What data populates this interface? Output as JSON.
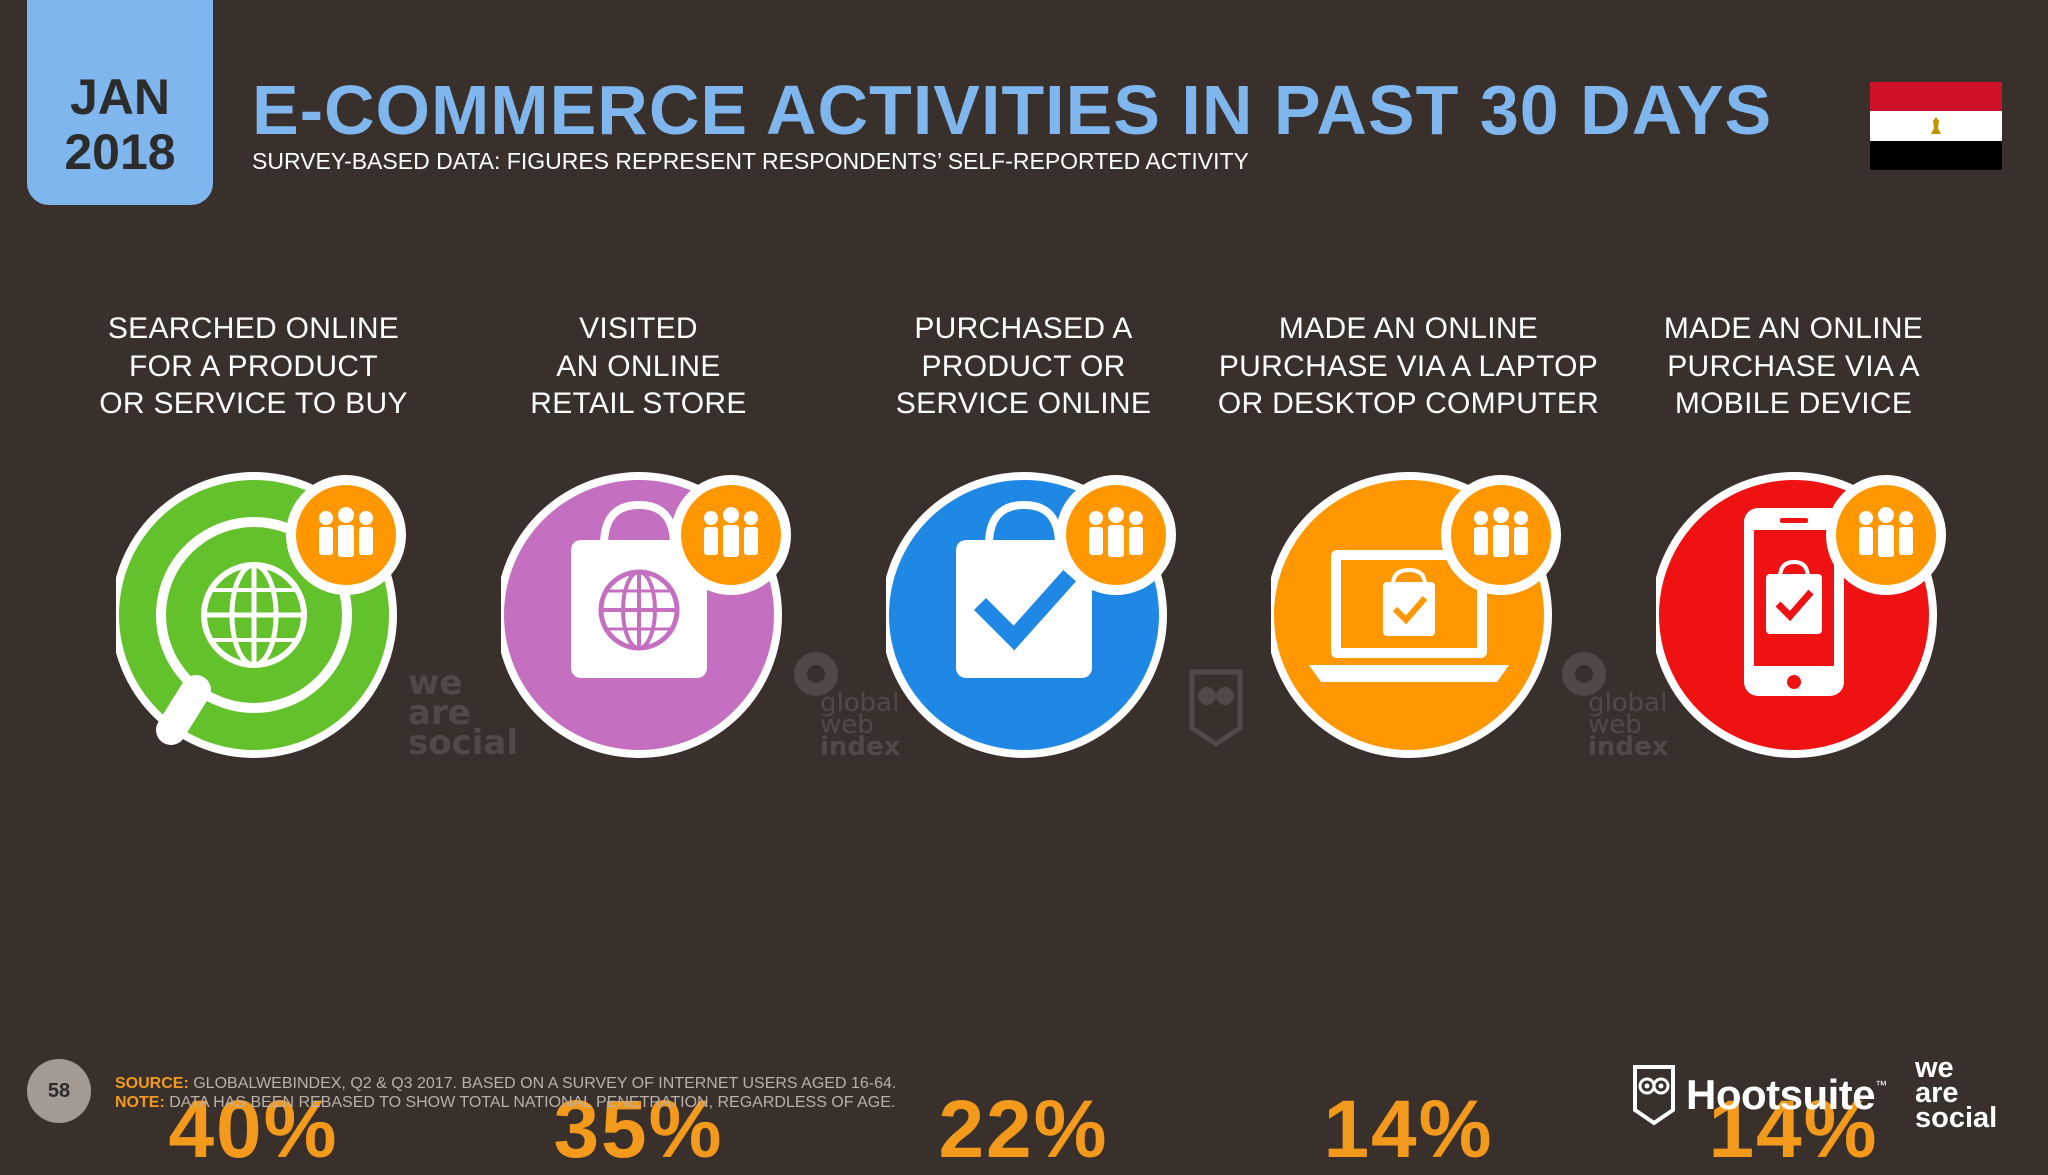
{
  "header": {
    "month": "JAN",
    "year": "2018",
    "title": "E-COMMERCE ACTIVITIES IN PAST 30 DAYS",
    "subtitle": "SURVEY-BASED DATA: FIGURES REPRESENT RESPONDENTS’ SELF-REPORTED ACTIVITY",
    "flag_icon": "egypt-flag-icon"
  },
  "colors": {
    "background": "#39302c",
    "accent_blue": "#7fb6ee",
    "value_orange": "#f39a1d",
    "green": "#63c12c",
    "purple": "#c56fc0",
    "blue": "#1f88e5",
    "orange": "#ff9800",
    "red": "#ef1212"
  },
  "activities": [
    {
      "label_lines": [
        "SEARCHED ONLINE",
        "FOR A PRODUCT",
        "OR SERVICE TO BUY"
      ],
      "value": "40%",
      "icon": "globe-search-icon",
      "color": "#63c12c"
    },
    {
      "label_lines": [
        "VISITED",
        "AN ONLINE",
        "RETAIL STORE"
      ],
      "value": "35%",
      "icon": "shopping-bag-globe-icon",
      "color": "#c56fc0"
    },
    {
      "label_lines": [
        "PURCHASED A",
        "PRODUCT OR",
        "SERVICE ONLINE"
      ],
      "value": "22%",
      "icon": "shopping-bag-check-icon",
      "color": "#1f88e5"
    },
    {
      "label_lines": [
        "MADE AN ONLINE",
        "PURCHASE VIA A LAPTOP",
        "OR DESKTOP COMPUTER"
      ],
      "value": "14%",
      "icon": "laptop-bag-icon",
      "color": "#ff9800"
    },
    {
      "label_lines": [
        "MADE AN ONLINE",
        "PURCHASE VIA A",
        "MOBILE DEVICE"
      ],
      "value": "14%",
      "icon": "mobile-bag-icon",
      "color": "#ef1212"
    }
  ],
  "watermarks": {
    "wearesocial": [
      "we",
      "are",
      "social"
    ],
    "gwi": [
      "global",
      "web",
      "index"
    ]
  },
  "footer": {
    "page_number": "58",
    "source_label": "SOURCE:",
    "source_text": "GLOBALWEBINDEX, Q2 & Q3 2017. BASED ON A SURVEY OF INTERNET USERS AGED 16-64.",
    "note_label": "NOTE:",
    "note_text": "DATA HAS BEEN REBASED TO SHOW TOTAL NATIONAL PENETRATION, REGARDLESS OF AGE.",
    "hootsuite": "Hootsuite",
    "hootsuite_tm": "™",
    "wearesocial": [
      "we",
      "are",
      "social"
    ]
  }
}
